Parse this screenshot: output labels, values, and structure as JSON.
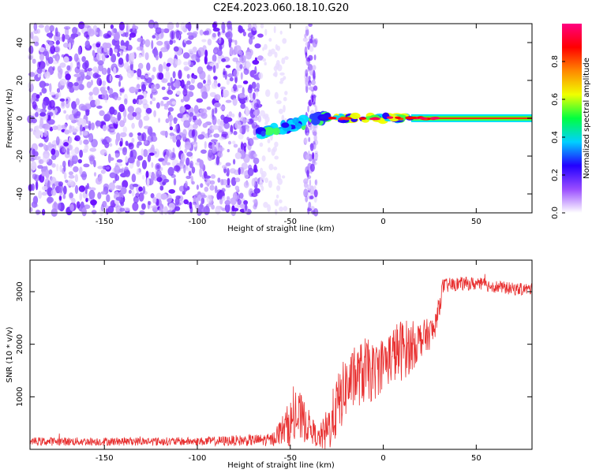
{
  "title": "C2E4.2023.060.18.10.G20",
  "chart_data": [
    {
      "type": "heatmap",
      "xlabel": "Height of straight line (km)",
      "ylabel": "Frequency (Hz)",
      "xlim": [
        -190,
        80
      ],
      "ylim": [
        -50,
        50
      ],
      "x_ticks": [
        -150,
        -100,
        -50,
        0,
        50
      ],
      "y_ticks": [
        -40,
        -20,
        0,
        20,
        40
      ],
      "colorbar": {
        "label": "Normalized spectral amplitude",
        "range": [
          0,
          1
        ],
        "ticks": [
          "0.0",
          "0.2",
          "0.4",
          "0.6",
          "0.8"
        ],
        "colors": [
          "#ffffff",
          "#9a4dff",
          "#2200ff",
          "#00d0ff",
          "#00ff40",
          "#f0ff00",
          "#ff8800",
          "#ff0000",
          "#ff0080"
        ]
      },
      "description_regions": [
        {
          "x_range": [
            -190,
            -66
          ],
          "freq_range": [
            -50,
            50
          ],
          "amplitude": "low (noise, purple)"
        },
        {
          "x_range": [
            -42,
            -36
          ],
          "freq_range": [
            -50,
            50
          ],
          "amplitude": "low (noise column)"
        },
        {
          "x_range": [
            -66,
            -30
          ],
          "freq_center": [
            -8,
            2
          ],
          "amplitude": "0.2-0.5"
        },
        {
          "x_range": [
            -30,
            80
          ],
          "freq_center": [
            0,
            0
          ],
          "amplitude": "0.8-1.0"
        }
      ]
    },
    {
      "type": "line",
      "xlabel": "Height of straight line (km)",
      "ylabel": "SNR (10 * v/v)",
      "xlim": [
        -190,
        80
      ],
      "ylim": [
        0,
        3600
      ],
      "x_ticks": [
        -150,
        -100,
        -50,
        0,
        50
      ],
      "y_ticks": [
        1000,
        2000,
        3000
      ],
      "line_color": "#e83030",
      "series": [
        {
          "x": [
            -190,
            -150,
            -100,
            -60,
            -55,
            -50,
            -45,
            -40,
            -35,
            -30,
            -25,
            -20,
            -15,
            -10,
            -5,
            0,
            5,
            10,
            15,
            20,
            25,
            28,
            32,
            40,
            50,
            60,
            70,
            80
          ],
          "y": [
            150,
            150,
            150,
            180,
            350,
            500,
            600,
            450,
            200,
            350,
            800,
            1200,
            1350,
            1500,
            1450,
            1650,
            1800,
            1900,
            1950,
            2100,
            2200,
            2300,
            3100,
            3150,
            3150,
            3100,
            3050,
            3050
          ],
          "spread": [
            80,
            80,
            80,
            120,
            250,
            450,
            500,
            300,
            180,
            450,
            600,
            600,
            550,
            650,
            550,
            500,
            550,
            600,
            500,
            350,
            300,
            300,
            150,
            130,
            130,
            120,
            120,
            110
          ]
        }
      ]
    }
  ]
}
